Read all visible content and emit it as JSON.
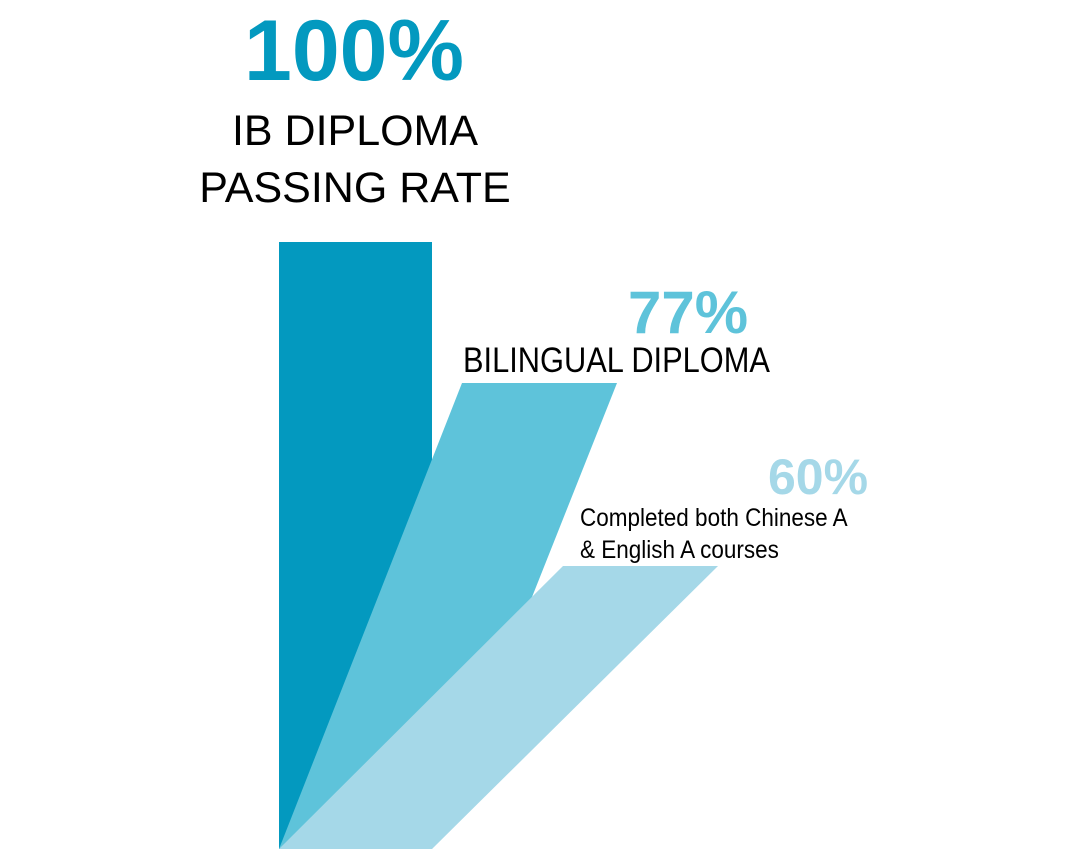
{
  "chart_data": {
    "type": "bar",
    "categories": [
      "IB DIPLOMA PASSING RATE",
      "BILINGUAL DIPLOMA",
      "Completed both Chinese A & English A courses"
    ],
    "values": [
      100,
      77,
      60
    ],
    "value_labels": [
      "100%",
      "77%",
      "60%"
    ],
    "label_lines": [
      [
        "IB DIPLOMA",
        "PASSING RATE"
      ],
      [
        "BILINGUAL DIPLOMA"
      ],
      [
        "Completed both Chinese A",
        "& English A courses"
      ]
    ],
    "colors": [
      "#0399bf",
      "#5ec3da",
      "#a5d8e8"
    ],
    "ylim": [
      0,
      100
    ],
    "grid": false
  }
}
